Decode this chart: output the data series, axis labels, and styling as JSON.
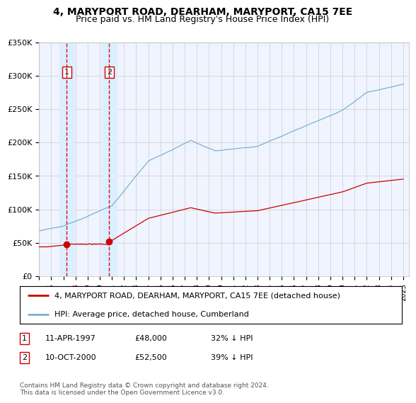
{
  "title": "4, MARYPORT ROAD, DEARHAM, MARYPORT, CA15 7EE",
  "subtitle": "Price paid vs. HM Land Registry's House Price Index (HPI)",
  "ylim": [
    0,
    350000
  ],
  "yticks": [
    0,
    50000,
    100000,
    150000,
    200000,
    250000,
    300000,
    350000
  ],
  "ytick_labels": [
    "£0",
    "£50K",
    "£100K",
    "£150K",
    "£200K",
    "£250K",
    "£300K",
    "£350K"
  ],
  "xlim_start": 1995.0,
  "xlim_end": 2025.5,
  "sale1_date": 1997.28,
  "sale1_price": 48000,
  "sale2_date": 2000.78,
  "sale2_price": 52500,
  "red_line_color": "#cc0000",
  "blue_line_color": "#7ab0d4",
  "shade_color": "#ddeeff",
  "marker_color": "#cc0000",
  "grid_color": "#cccccc",
  "background_color": "#f0f4ff",
  "legend_label_red": "4, MARYPORT ROAD, DEARHAM, MARYPORT, CA15 7EE (detached house)",
  "legend_label_blue": "HPI: Average price, detached house, Cumberland",
  "footer": "Contains HM Land Registry data © Crown copyright and database right 2024.\nThis data is licensed under the Open Government Licence v3.0.",
  "title_fontsize": 10,
  "subtitle_fontsize": 9
}
